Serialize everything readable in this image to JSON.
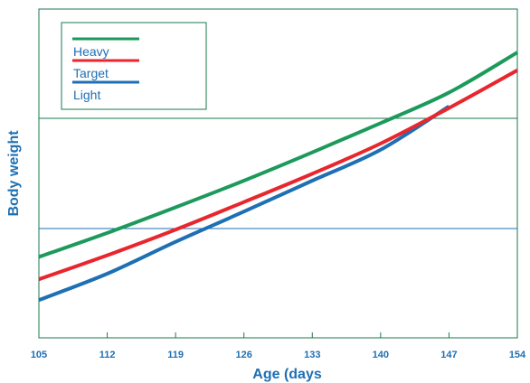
{
  "chart_data": {
    "type": "line",
    "xlabel": "Age (days",
    "ylabel": "Body weight",
    "x_ticks": [
      "105",
      "112",
      "119",
      "126",
      "133",
      "140",
      "147",
      "154"
    ],
    "xlim": [
      105,
      154
    ],
    "ylim": [
      0,
      100
    ],
    "grid": "horizontal",
    "legend_position": "top-left",
    "series": [
      {
        "name": "Heavy",
        "color": "#1d9a5b",
        "x": [
          105,
          112,
          119,
          126,
          133,
          140,
          147,
          154
        ],
        "y": [
          24.6,
          31.9,
          39.7,
          47.8,
          56.4,
          65.3,
          74.6,
          86.8
        ]
      },
      {
        "name": "Target",
        "color": "#e8262d",
        "x": [
          105,
          112,
          119,
          126,
          133,
          140,
          147,
          154
        ],
        "y": [
          17.8,
          25.1,
          32.9,
          41.3,
          49.9,
          59.1,
          69.9,
          81.4
        ]
      },
      {
        "name": "Light",
        "color": "#1e6fb3",
        "x": [
          105,
          112,
          119,
          126,
          133,
          140,
          147
        ],
        "y": [
          11.5,
          19.5,
          29.2,
          38.4,
          47.8,
          57.2,
          70.4
        ]
      }
    ]
  }
}
